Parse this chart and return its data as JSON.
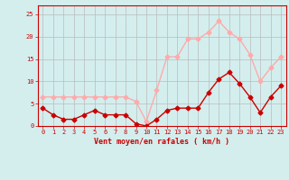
{
  "x": [
    0,
    1,
    2,
    3,
    4,
    5,
    6,
    7,
    8,
    9,
    10,
    11,
    12,
    13,
    14,
    15,
    16,
    17,
    18,
    19,
    20,
    21,
    22,
    23
  ],
  "y_mean": [
    4,
    2.5,
    1.5,
    1.5,
    2.5,
    3.5,
    2.5,
    2.5,
    2.5,
    0.5,
    0,
    1.5,
    3.5,
    4,
    4,
    4,
    7.5,
    10.5,
    12,
    9.5,
    6.5,
    3,
    6.5,
    9
  ],
  "y_gust": [
    6.5,
    6.5,
    6.5,
    6.5,
    6.5,
    6.5,
    6.5,
    6.5,
    6.5,
    5.5,
    1,
    8,
    15.5,
    15.5,
    19.5,
    19.5,
    21,
    23.5,
    21,
    19.5,
    16,
    10,
    13,
    15.5
  ],
  "color_mean": "#cc0000",
  "color_gust": "#ffaaaa",
  "bg_color": "#d4eeee",
  "grid_color": "#bbbbbb",
  "xlabel": "Vent moyen/en rafales ( km/h )",
  "ylim": [
    0,
    27
  ],
  "xlim": [
    -0.5,
    23.5
  ],
  "yticks": [
    0,
    5,
    10,
    15,
    20,
    25
  ],
  "xticks": [
    0,
    1,
    2,
    3,
    4,
    5,
    6,
    7,
    8,
    9,
    10,
    11,
    12,
    13,
    14,
    15,
    16,
    17,
    18,
    19,
    20,
    21,
    22,
    23
  ]
}
